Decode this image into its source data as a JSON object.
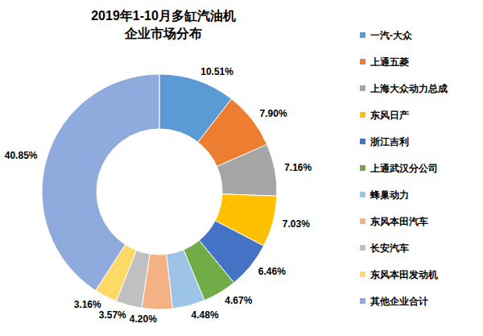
{
  "chart_data": {
    "type": "pie",
    "title": "2019年1-10月多缸汽油机",
    "subtitle": "企业市场分布",
    "categories": [
      "一汽-大众",
      "上通五菱",
      "上海大众动力总成",
      "东风日产",
      "浙江吉利",
      "上通武汉分公司",
      "蜂巢动力",
      "东风本田汽车",
      "长安汽车",
      "东风本田发动机",
      "其他企业合计"
    ],
    "values": [
      10.51,
      7.9,
      7.16,
      7.03,
      6.46,
      4.67,
      4.48,
      4.2,
      3.57,
      3.16,
      40.85
    ],
    "value_labels": [
      "10.51%",
      "7.90%",
      "7.16%",
      "7.03%",
      "6.46%",
      "4.67%",
      "4.48%",
      "4.20%",
      "3.57%",
      "3.16%",
      "40.85%"
    ],
    "colors": [
      "#5b9bd5",
      "#ed7d31",
      "#a5a5a5",
      "#ffc000",
      "#4472c4",
      "#70ad47",
      "#9dc3e6",
      "#f4b183",
      "#c0c0c0",
      "#ffd966",
      "#8faadc"
    ],
    "data_labels": true,
    "legend": "right"
  }
}
